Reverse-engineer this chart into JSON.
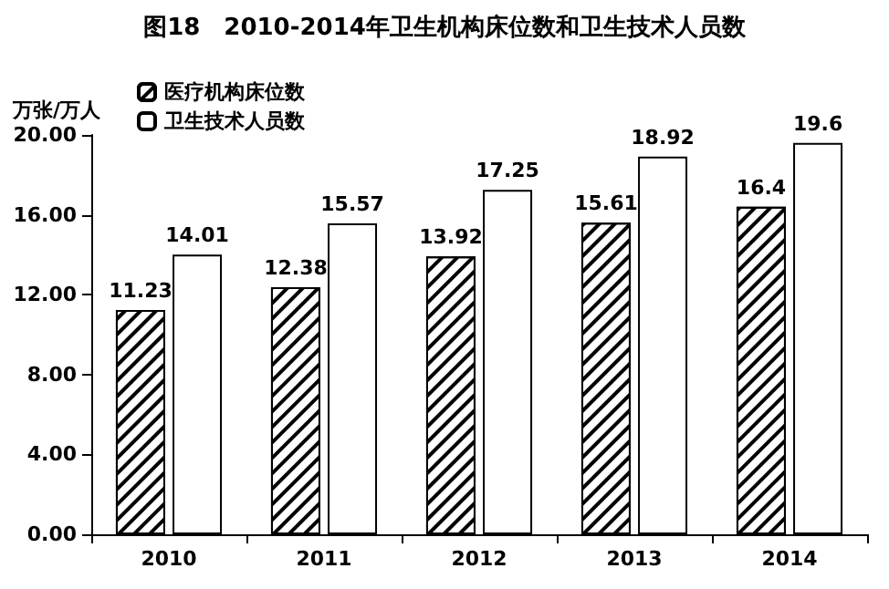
{
  "chart_data": {
    "type": "bar",
    "title": "图18　2010-2014年卫生机构床位数和卫生技术人员数",
    "ylabel": "万张/万人",
    "categories": [
      "2010",
      "2011",
      "2012",
      "2013",
      "2014"
    ],
    "series": [
      {
        "name": "医疗机构床位数",
        "color": "#ffffff",
        "values": [
          11.23,
          12.38,
          13.92,
          15.61,
          16.4
        ]
      },
      {
        "name": "卫生技术人员数",
        "color": "#ffffff",
        "values": [
          14.01,
          15.57,
          17.25,
          18.92,
          19.6
        ]
      }
    ],
    "ylim": [
      0,
      20
    ],
    "yticks": [
      {
        "value": 0,
        "label": "0.00"
      },
      {
        "value": 4,
        "label": "4.00"
      },
      {
        "value": 8,
        "label": "8.00"
      },
      {
        "value": 12,
        "label": "12.00"
      },
      {
        "value": 16,
        "label": "16.00"
      },
      {
        "value": 20,
        "label": "20.00"
      }
    ],
    "data_labels": true,
    "legend": "top left",
    "grid": false
  }
}
